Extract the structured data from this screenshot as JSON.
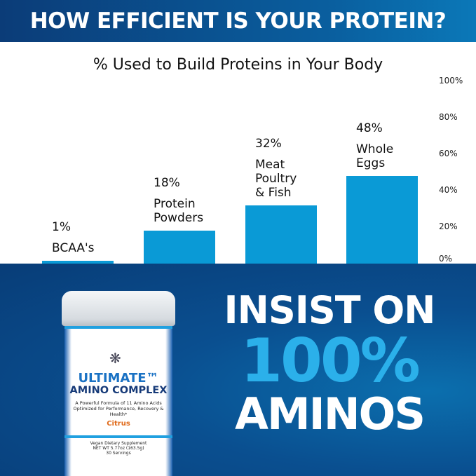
{
  "header": {
    "title": "HOW EFFICIENT IS YOUR PROTEIN?"
  },
  "chart_data": {
    "type": "bar",
    "title": "% Used to Build Proteins in Your Body",
    "categories": [
      "BCAA's",
      "Protein Powders",
      "Meat Poultry & Fish",
      "Whole Eggs"
    ],
    "category_lines": [
      [
        "BCAA's"
      ],
      [
        "Protein",
        "Powders"
      ],
      [
        "Meat",
        "Poultry",
        "& Fish"
      ],
      [
        "Whole",
        "Eggs"
      ]
    ],
    "values": [
      1,
      18,
      32,
      48
    ],
    "data_labels": [
      "1%",
      "18%",
      "32%",
      "48%"
    ],
    "ylim": [
      0,
      100
    ],
    "yticks": [
      "0%",
      "20%",
      "40%",
      "60%",
      "80%",
      "100%"
    ],
    "ytick_values": [
      0,
      20,
      40,
      60,
      80,
      100
    ],
    "y_axis_side": "right",
    "grid": false,
    "bar_color": "#0a9ad6"
  },
  "slogan": {
    "line1": "INSIST ON",
    "line2": "100%",
    "line3": "AMINOS",
    "accent": "#2bb0ea"
  },
  "product": {
    "name1": "ULTIMATE™",
    "name2": "AMINO COMPLEX",
    "description": "A Powerful Formula of 11 Amino Acids Optimized for Performance, Recovery & Health*",
    "flavor": "Citrus",
    "footer1": "Vegan Dietary Supplement",
    "footer2": "NET WT 5.77oz (163.5g)",
    "footer3": "30 Servings"
  }
}
